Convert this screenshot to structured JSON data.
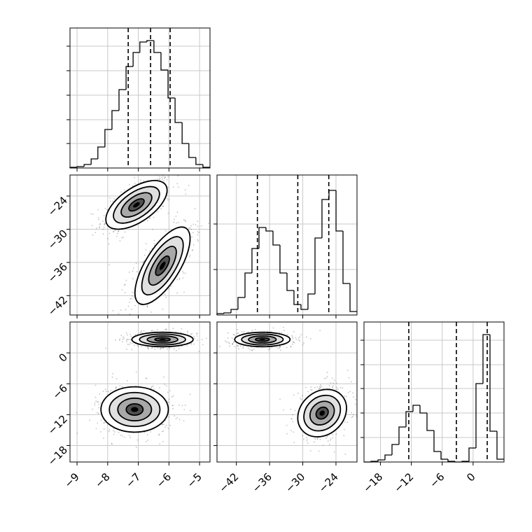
{
  "chart_data": {
    "type": "corner",
    "color": "#000000",
    "grid": true,
    "params": [
      {
        "lim": [
          -9.23,
          -4.66
        ],
        "ticks": [
          {
            "value": -9,
            "label": "−9"
          },
          {
            "value": -8,
            "label": "−8"
          },
          {
            "value": -7,
            "label": "−7"
          },
          {
            "value": -6,
            "label": "−6"
          },
          {
            "value": -5,
            "label": "−5"
          }
        ]
      },
      {
        "lim": [
          -45.5,
          -20.2
        ],
        "ticks": [
          {
            "value": -42,
            "label": "−42"
          },
          {
            "value": -36,
            "label": "−36"
          },
          {
            "value": -30,
            "label": "−30"
          },
          {
            "value": -24,
            "label": "−24"
          }
        ]
      },
      {
        "lim": [
          -21.2,
          6.0
        ],
        "ticks": [
          {
            "value": -18,
            "label": "−18"
          },
          {
            "value": -12,
            "label": "−12"
          },
          {
            "value": -6,
            "label": "−6"
          },
          0
        ]
      }
    ],
    "histograms": [
      {
        "bins": [
          -9.23,
          -9.0,
          -8.77,
          -8.54,
          -8.32,
          -8.09,
          -7.86,
          -7.63,
          -7.4,
          -7.17,
          -6.95,
          -6.72,
          -6.49,
          -6.26,
          -6.03,
          -5.8,
          -5.57,
          -5.35,
          -5.12,
          -4.89,
          -4.66
        ],
        "counts": [
          1,
          2,
          5,
          13,
          30,
          55,
          82,
          112,
          145,
          165,
          180,
          182,
          165,
          140,
          100,
          65,
          35,
          15,
          5,
          1
        ],
        "ylim": [
          0,
          200
        ],
        "yticks": [
          35,
          69,
          104,
          139,
          174
        ],
        "quantiles": [
          -7.33,
          -6.6,
          -5.96
        ]
      },
      {
        "bins": [
          -45.5,
          -44.24,
          -42.97,
          -41.71,
          -40.44,
          -39.18,
          -37.91,
          -36.65,
          -35.38,
          -34.12,
          -32.85,
          -31.59,
          -30.32,
          -29.06,
          -27.79,
          -26.53,
          -25.26,
          -23.99,
          -22.73,
          -21.46,
          -20.2
        ],
        "counts": [
          2,
          3,
          8,
          25,
          60,
          95,
          125,
          120,
          100,
          60,
          35,
          15,
          8,
          30,
          110,
          165,
          178,
          120,
          45,
          5
        ],
        "ylim": [
          0,
          200
        ],
        "yticks": [
          65,
          130
        ],
        "quantiles": [
          -38.2,
          -30.9,
          -25.3
        ]
      },
      {
        "bins": [
          -21.2,
          -19.84,
          -18.48,
          -17.12,
          -15.76,
          -14.4,
          -13.04,
          -11.68,
          -10.32,
          -8.96,
          -7.6,
          -6.24,
          -4.88,
          -3.52,
          -2.16,
          -0.8,
          0.56,
          1.92,
          3.28,
          4.64,
          6.0
        ],
        "counts": [
          0,
          1,
          3,
          10,
          25,
          50,
          72,
          81,
          70,
          45,
          15,
          4,
          1,
          0,
          1,
          20,
          112,
          182,
          44,
          4
        ],
        "ylim": [
          0,
          200
        ],
        "yticks": [
          35,
          70,
          105,
          139,
          174
        ],
        "quantiles": [
          -12.5,
          -3.25,
          2.74
        ]
      }
    ],
    "pairs": [
      {
        "x": 0,
        "y": 1,
        "clusters": [
          {
            "center": [
              -7.06,
              -25.6
            ],
            "sd": [
              0.5,
              2.2
            ],
            "corr": 0.6
          },
          {
            "center": [
              -6.21,
              -36.6
            ],
            "sd": [
              0.45,
              3.5
            ],
            "corr": 0.7
          }
        ]
      },
      {
        "x": 0,
        "y": 2,
        "clusters": [
          {
            "center": [
              -6.21,
              2.6
            ],
            "sd": [
              0.5,
              0.7
            ],
            "corr": 0
          },
          {
            "center": [
              -7.12,
              -11.0
            ],
            "sd": [
              0.55,
              2.2
            ],
            "corr": 0
          }
        ]
      },
      {
        "x": 1,
        "y": 2,
        "clusters": [
          {
            "center": [
              -37.3,
              2.6
            ],
            "sd": [
              2.5,
              0.7
            ],
            "corr": 0
          },
          {
            "center": [
              -26.5,
              -11.7
            ],
            "sd": [
              2.2,
              2.3
            ],
            "corr": 0.2
          }
        ]
      }
    ]
  }
}
